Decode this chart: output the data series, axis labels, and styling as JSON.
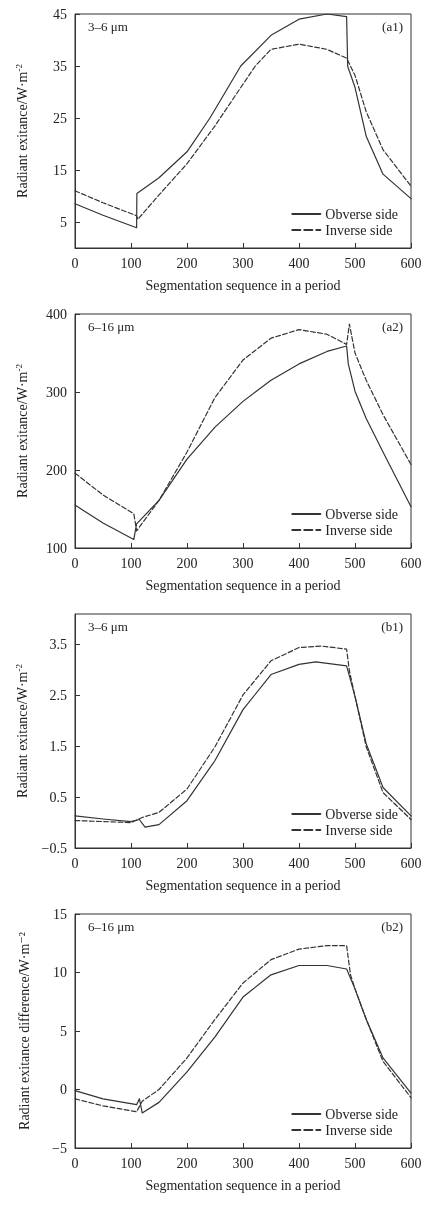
{
  "chart_data": [
    {
      "type": "line",
      "xlabel": "Segmentation sequence in a period",
      "ylabel": "Radiant exitance/W·m$^{-2}$",
      "annotations": [
        "3–6 μm",
        "(a1)"
      ],
      "xlim": [
        0,
        600
      ],
      "xticks": [
        0,
        100,
        200,
        300,
        400,
        500,
        600
      ],
      "ylim": [
        0,
        45
      ],
      "yticks": [
        5,
        15,
        25,
        35,
        45
      ],
      "grid": false,
      "legend": "bottom right",
      "marker": "none",
      "series": [
        {
          "name": "Obverse side",
          "color": "#333333",
          "line_style": "solid",
          "x": [
            0,
            50,
            110,
            110.5,
            150,
            200,
            241,
            296,
            350,
            400,
            450,
            485,
            487,
            500,
            520,
            550,
            600
          ],
          "values": [
            8.5,
            6.3,
            3.9,
            10.5,
            13.5,
            18.5,
            25,
            35,
            40.9,
            44,
            45,
            44.5,
            34.9,
            30.9,
            21.5,
            14.2,
            9.5
          ]
        },
        {
          "name": "Inverse side",
          "color": "#333333",
          "line_style": "dashed",
          "x": [
            0,
            50,
            110,
            112,
            150,
            200,
            250,
            300,
            322,
            350,
            400,
            450,
            485,
            500,
            520,
            550,
            600
          ],
          "values": [
            11,
            8.7,
            6.2,
            5.5,
            10.2,
            16.2,
            23.5,
            31.5,
            35,
            38.2,
            39.2,
            38.2,
            36.5,
            33.2,
            26.2,
            18.9,
            11.9
          ]
        }
      ]
    },
    {
      "type": "line",
      "xlabel": "Segmentation sequence in a period",
      "ylabel": "Radiant exitance/W·m$^{-2}$",
      "annotations": [
        "6–16 μm",
        "(a2)"
      ],
      "xlim": [
        0,
        600
      ],
      "xticks": [
        0,
        100,
        200,
        300,
        400,
        500,
        600
      ],
      "ylim": [
        100,
        400
      ],
      "yticks": [
        100,
        200,
        300,
        400
      ],
      "grid": false,
      "legend": "bottom right",
      "marker": "none",
      "series": [
        {
          "name": "Obverse side",
          "color": "#333333",
          "line_style": "solid",
          "x": [
            0,
            50,
            105,
            110,
            150,
            200,
            250,
            300,
            350,
            400,
            450,
            485,
            488,
            500,
            520,
            550,
            600
          ],
          "values": [
            155,
            132,
            111,
            131,
            161,
            214,
            255,
            288,
            315,
            336,
            352,
            359,
            336,
            301,
            266,
            223,
            153
          ]
        },
        {
          "name": "Inverse side",
          "color": "#333333",
          "line_style": "dashed",
          "x": [
            0,
            50,
            105,
            110,
            150,
            200,
            250,
            300,
            350,
            400,
            450,
            485,
            490,
            500,
            520,
            550,
            600
          ],
          "values": [
            196,
            168,
            144,
            122,
            161,
            223,
            293,
            341,
            369,
            380,
            374,
            361,
            387,
            350,
            315,
            271,
            207
          ]
        }
      ]
    },
    {
      "type": "line",
      "xlabel": "Segmentation sequence in a period",
      "ylabel": "Radiant exitance/W·m$^{-2}$",
      "annotations": [
        "3–6 μm",
        "(b1)"
      ],
      "xlim": [
        0,
        600
      ],
      "xticks": [
        0,
        100,
        200,
        300,
        400,
        500,
        600
      ],
      "ylim": [
        -0.5,
        4.1
      ],
      "yticks": [
        -0.5,
        0.5,
        1.5,
        2.5,
        3.5
      ],
      "grid": false,
      "legend": "bottom right",
      "marker": "none",
      "series": [
        {
          "name": "Obverse side",
          "color": "#333333",
          "line_style": "solid",
          "x": [
            0,
            50,
            100,
            115,
            125,
            150,
            200,
            250,
            300,
            350,
            400,
            430,
            485,
            500,
            520,
            550,
            600
          ],
          "values": [
            0.13,
            0.07,
            0.02,
            0.06,
            -0.09,
            -0.04,
            0.43,
            1.22,
            2.22,
            2.91,
            3.11,
            3.16,
            3.08,
            2.48,
            1.55,
            0.69,
            0.13
          ]
        },
        {
          "name": "Inverse side",
          "color": "#333333",
          "line_style": "dashed",
          "x": [
            0,
            50,
            100,
            120,
            150,
            200,
            250,
            300,
            350,
            400,
            440,
            485,
            490,
            500,
            520,
            550,
            600
          ],
          "values": [
            0.04,
            0.02,
            0,
            0.1,
            0.2,
            0.66,
            1.49,
            2.51,
            3.18,
            3.44,
            3.47,
            3.41,
            2.98,
            2.48,
            1.49,
            0.59,
            0.06
          ]
        }
      ]
    },
    {
      "type": "line",
      "xlabel": "Segmentation sequence in a period",
      "ylabel": "Radiant exitance difference/W·m⁻²",
      "annotations": [
        "6–16 μm",
        "(b2)"
      ],
      "xlim": [
        0,
        600
      ],
      "xticks": [
        0,
        100,
        200,
        300,
        400,
        500,
        600
      ],
      "ylim": [
        -5,
        15
      ],
      "yticks": [
        -5,
        0,
        5,
        10,
        15
      ],
      "grid": false,
      "legend": "bottom right",
      "marker": "none",
      "series": [
        {
          "name": "Obverse side",
          "color": "#333333",
          "line_style": "solid",
          "x": [
            0,
            50,
            110,
            115,
            120,
            150,
            200,
            250,
            300,
            350,
            400,
            450,
            485,
            500,
            520,
            550,
            600
          ],
          "values": [
            -0.1,
            -0.8,
            -1.3,
            -0.8,
            -2,
            -1.1,
            1.5,
            4.5,
            7.9,
            9.8,
            10.6,
            10.6,
            10.3,
            8.6,
            6,
            2.7,
            -0.3
          ]
        },
        {
          "name": "Inverse side",
          "color": "#333333",
          "line_style": "dashed",
          "x": [
            0,
            50,
            110,
            120,
            150,
            200,
            250,
            300,
            350,
            400,
            450,
            485,
            492,
            500,
            520,
            550,
            600
          ],
          "values": [
            -0.8,
            -1.4,
            -1.9,
            -1,
            0,
            2.7,
            6,
            9.1,
            11.1,
            12,
            12.3,
            12.3,
            9.8,
            8.6,
            6,
            2.4,
            -0.7
          ]
        }
      ]
    }
  ]
}
